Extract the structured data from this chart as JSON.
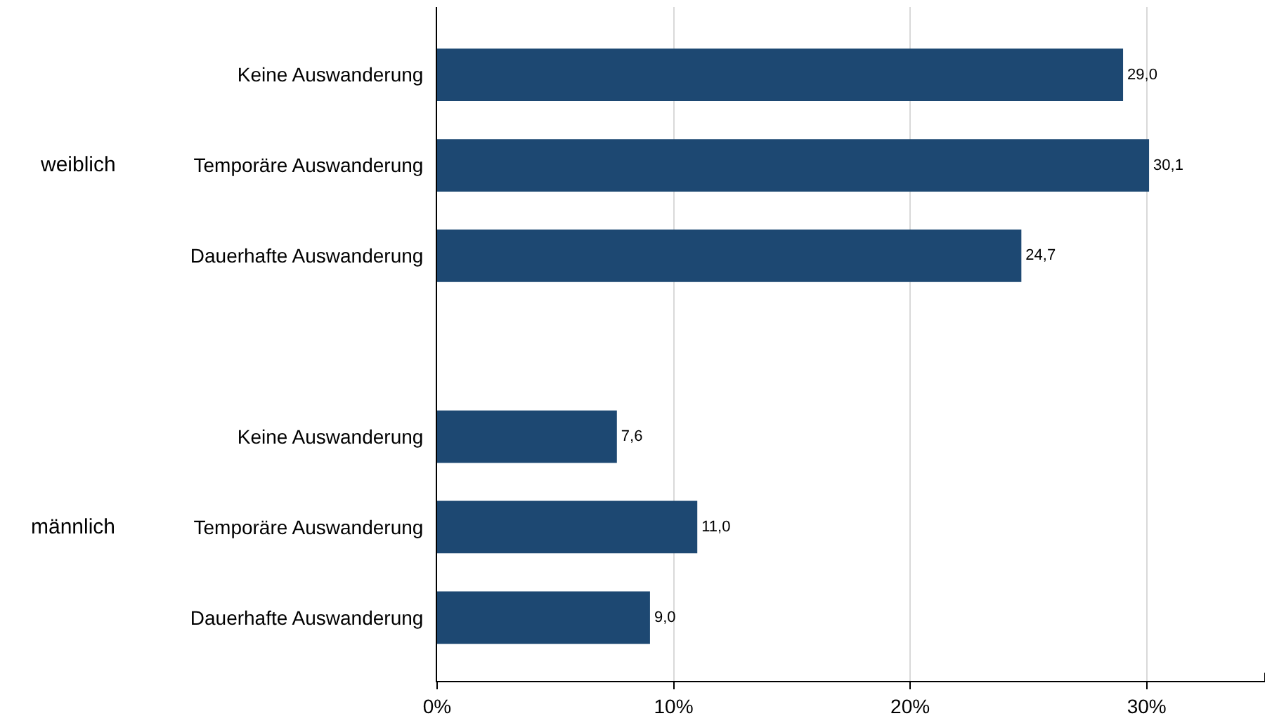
{
  "chart_data": {
    "type": "bar",
    "orientation": "horizontal",
    "categories": [
      "Keine Auswanderung",
      "Temporäre Auswanderung",
      "Dauerhafte Auswanderung",
      null,
      "Keine Auswanderung",
      "Temporäre Auswanderung",
      "Dauerhafte Auswanderung"
    ],
    "values": [
      29.0,
      30.1,
      24.7,
      null,
      7.6,
      11.0,
      9.0
    ],
    "value_labels": [
      "29,0",
      "30,1",
      "24,7",
      null,
      "7,6",
      "11,0",
      "9,0"
    ],
    "color": "#1d4872",
    "xlim": [
      0,
      35
    ],
    "xticks": [
      {
        "value": 0,
        "label": "0%"
      },
      {
        "value": 10,
        "label": "10%"
      },
      {
        "value": 20,
        "label": "20%"
      },
      {
        "value": 30,
        "label": "30%"
      }
    ],
    "annotations": [
      "weiblich",
      "männlich"
    ],
    "grid": "x",
    "legend": false
  }
}
